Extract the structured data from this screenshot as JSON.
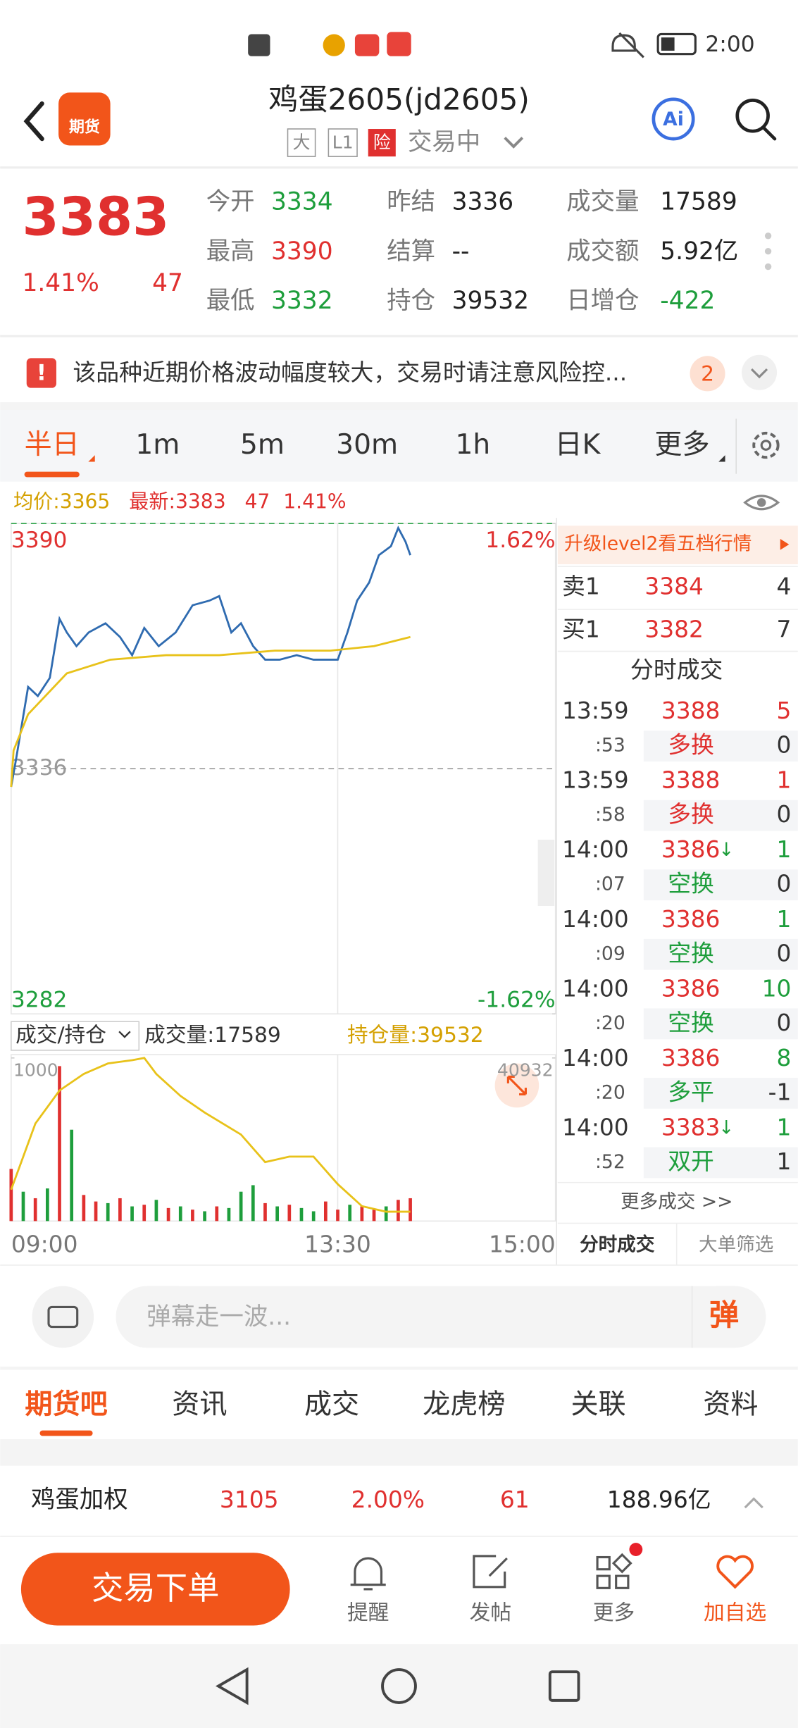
{
  "status_bar": {
    "time": "2:00"
  },
  "header": {
    "logo": "期货",
    "title": "鸡蛋2605(jd2605)",
    "tags": [
      "大",
      "L1",
      "险"
    ],
    "status": "交易中",
    "ai": "Ai"
  },
  "quote": {
    "price": "3383",
    "change_pct": "1.41%",
    "change": "47",
    "fields": [
      [
        {
          "label": "今开",
          "value": "3334",
          "color": "#1e9e3c"
        },
        {
          "label": "昨结",
          "value": "3336"
        },
        {
          "label": "成交量",
          "value": "17589"
        }
      ],
      [
        {
          "label": "最高",
          "value": "3390",
          "color": "#e0302f"
        },
        {
          "label": "结算",
          "value": "--"
        },
        {
          "label": "成交额",
          "value": "5.92亿"
        }
      ],
      [
        {
          "label": "最低",
          "value": "3332",
          "color": "#1e9e3c"
        },
        {
          "label": "持仓",
          "value": "39532"
        },
        {
          "label": "日增仓",
          "value": "-422",
          "color": "#1e9e3c"
        }
      ]
    ]
  },
  "notice": {
    "text": "该品种近期价格波动幅度较大，交易时请注意风险控...",
    "count": "2"
  },
  "period_tabs": [
    "半日",
    "1m",
    "5m",
    "30m",
    "1h",
    "日K",
    "更多"
  ],
  "legend": {
    "avg": "均价:3365",
    "latest": "最新:3383",
    "change": "47",
    "change_pct": "1.41%"
  },
  "chart_data": [
    {
      "type": "line",
      "xlim": [
        0,
        225
      ],
      "xticks": [
        {
          "value": 0,
          "label": "09:00"
        },
        {
          "value": 135,
          "label": "13:30"
        },
        {
          "value": 225,
          "label": "15:00"
        }
      ],
      "ylim": [
        3282,
        3390
      ],
      "yticks": [
        3282,
        3336,
        3390
      ],
      "y2lim": [
        -1.62,
        1.62
      ],
      "y2ticks": [
        {
          "value": -1.62,
          "label": "-1.62%"
        },
        {
          "value": 1.62,
          "label": "1.62%"
        }
      ],
      "series": [
        {
          "color": "#2f6bb0",
          "x": [
            0,
            2,
            7,
            11,
            16,
            20,
            23,
            27,
            32,
            39,
            45,
            50,
            55,
            61,
            68,
            75,
            82,
            86,
            91,
            95,
            100,
            105,
            111,
            118,
            125,
            132,
            135,
            139,
            143,
            148,
            152,
            157,
            160,
            163,
            165
          ],
          "values": [
            3332,
            3338,
            3354,
            3352,
            3356,
            3369,
            3366,
            3363,
            3366,
            3368,
            3365,
            3361,
            3367,
            3363,
            3366,
            3372,
            3373,
            3374,
            3366,
            3368,
            3363,
            3360,
            3360,
            3361,
            3360,
            3360,
            3360,
            3366,
            3373,
            3377,
            3383,
            3385,
            3389,
            3386,
            3383
          ]
        },
        {
          "color": "#e8c21a",
          "x": [
            0,
            1,
            7,
            23,
            41,
            64,
            86,
            109,
            132,
            150,
            165
          ],
          "values": [
            3332,
            3340,
            3348,
            3357,
            3360,
            3361,
            3361,
            3362,
            3362,
            3363,
            3365
          ]
        }
      ]
    },
    {
      "type": "bar",
      "xlim": [
        0,
        225
      ],
      "ylim": [
        0,
        1000
      ],
      "yticks": [
        1000
      ],
      "x": [
        0,
        5,
        10,
        15,
        20,
        25,
        30,
        35,
        40,
        45,
        50,
        55,
        60,
        65,
        70,
        75,
        80,
        85,
        90,
        95,
        100,
        105,
        110,
        115,
        120,
        125,
        130,
        135,
        140,
        145,
        150,
        155,
        160,
        165
      ],
      "values": [
        320,
        180,
        140,
        200,
        950,
        560,
        160,
        120,
        110,
        140,
        90,
        100,
        130,
        80,
        90,
        70,
        60,
        90,
        80,
        180,
        220,
        110,
        90,
        100,
        80,
        60,
        120,
        70,
        100,
        90,
        70,
        90,
        130,
        140
      ],
      "colors": [
        "#e0302f",
        "#1e9e3c",
        "#e0302f",
        "#1e9e3c",
        "#e0302f",
        "#1e9e3c",
        "#e0302f",
        "#e0302f",
        "#1e9e3c",
        "#e0302f",
        "#1e9e3c",
        "#e0302f",
        "#1e9e3c",
        "#e0302f",
        "#1e9e3c",
        "#e0302f",
        "#1e9e3c",
        "#e0302f",
        "#1e9e3c",
        "#1e9e3c",
        "#1e9e3c",
        "#e0302f",
        "#1e9e3c",
        "#e0302f",
        "#1e9e3c",
        "#1e9e3c",
        "#e0302f",
        "#e0302f",
        "#1e9e3c",
        "#e0302f",
        "#e0302f",
        "#1e9e3c",
        "#e0302f",
        "#e0302f"
      ],
      "y2lim": [
        39300,
        40932
      ],
      "y2ticks": [
        40932
      ],
      "series": [
        {
          "color": "#e8c21a",
          "axis": "y2",
          "x": [
            0,
            10,
            20,
            30,
            40,
            50,
            55,
            60,
            70,
            80,
            95,
            105,
            115,
            125,
            135,
            145,
            155,
            165
          ],
          "values": [
            39614,
            40276,
            40607,
            40772,
            40877,
            40910,
            40932,
            40772,
            40552,
            40386,
            40166,
            39890,
            39945,
            39945,
            39669,
            39449,
            39394,
            39394
          ]
        }
      ]
    }
  ],
  "order_book": {
    "banner": "升级level2看五档行情",
    "rows": [
      {
        "label": "卖1",
        "price": "3384",
        "volume": "4"
      },
      {
        "label": "买1",
        "price": "3382",
        "volume": "7"
      }
    ]
  },
  "ticks_panel": {
    "title": "分时成交",
    "trades": [
      {
        "time": "13:59",
        "second": ":53",
        "price": "3388",
        "volume": "5",
        "kind": "多换",
        "oi_change": "0",
        "color": "#e0302f"
      },
      {
        "time": "13:59",
        "second": ":58",
        "price": "3388",
        "volume": "1",
        "kind": "多换",
        "oi_change": "0",
        "color": "#e0302f"
      },
      {
        "time": "14:00",
        "second": ":07",
        "price": "3386",
        "arrow": "↓",
        "volume": "1",
        "kind": "空换",
        "oi_change": "0",
        "color": "#1e9e3c"
      },
      {
        "time": "14:00",
        "second": ":09",
        "price": "3386",
        "volume": "1",
        "kind": "空换",
        "oi_change": "0",
        "color": "#1e9e3c"
      },
      {
        "time": "14:00",
        "second": ":20",
        "price": "3386",
        "volume": "10",
        "kind": "空换",
        "oi_change": "0",
        "color": "#1e9e3c"
      },
      {
        "time": "14:00",
        "second": ":20",
        "price": "3386",
        "volume": "8",
        "kind": "多平",
        "oi_change": "-1",
        "color": "#1e9e3c"
      },
      {
        "time": "14:00",
        "second": ":52",
        "price": "3383",
        "arrow": "↓",
        "volume": "1",
        "kind": "双开",
        "oi_change": "1",
        "color": "#1e9e3c"
      }
    ],
    "more": "更多成交 >>",
    "tabs": [
      "分时成交",
      "大单筛选"
    ]
  },
  "sub_header": {
    "selector": "成交/持仓",
    "volume": "成交量:17589",
    "open_interest": "持仓量:39532"
  },
  "comment_bar": {
    "placeholder": "弹幕走一波...",
    "button": "弹"
  },
  "section_tabs": [
    "期货吧",
    "资讯",
    "成交",
    "龙虎榜",
    "关联",
    "资料"
  ],
  "ticker": {
    "name": "鸡蛋加权",
    "price": "3105",
    "change_pct": "2.00%",
    "change": "61",
    "amount": "188.96亿"
  },
  "bottom_bar": {
    "trade": "交易下单",
    "actions": [
      "提醒",
      "发帖",
      "更多",
      "加自选"
    ]
  }
}
